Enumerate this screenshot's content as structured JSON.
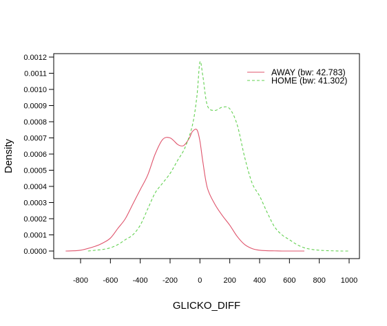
{
  "chart_data": {
    "type": "line",
    "title": "",
    "xlabel": "GLICKO_DIFF",
    "ylabel": "Density",
    "xlim": [
      -900,
      1000
    ],
    "ylim": [
      0,
      0.0012
    ],
    "x_ticks": [
      "-800",
      "-600",
      "-400",
      "-200",
      "0",
      "200",
      "400",
      "600",
      "800",
      "1000"
    ],
    "x_tick_values": [
      -800,
      -600,
      -400,
      -200,
      0,
      200,
      400,
      600,
      800,
      1000
    ],
    "y_ticks": [
      "0.0000",
      "0.0001",
      "0.0002",
      "0.0003",
      "0.0004",
      "0.0005",
      "0.0006",
      "0.0007",
      "0.0008",
      "0.0009",
      "0.0010",
      "0.0011",
      "0.0012"
    ],
    "y_tick_values": [
      0,
      0.0001,
      0.0002,
      0.0003,
      0.0004,
      0.0005,
      0.0006,
      0.0007,
      0.0008,
      0.0009,
      0.001,
      0.0011,
      0.0012
    ],
    "grid": false,
    "legend_position": "top-right",
    "series": [
      {
        "name": "AWAY (bw: 42.783)",
        "color": "#DF536B",
        "dash": "solid",
        "x": [
          -900,
          -800,
          -700,
          -650,
          -600,
          -550,
          -500,
          -450,
          -400,
          -350,
          -300,
          -250,
          -200,
          -150,
          -120,
          -100,
          -70,
          -50,
          -20,
          0,
          20,
          50,
          100,
          150,
          200,
          250,
          300,
          350,
          400,
          450,
          500,
          550,
          600,
          700
        ],
        "y": [
          0.0,
          5e-06,
          3e-05,
          5e-05,
          8e-05,
          0.00014,
          0.0002,
          0.00029,
          0.00038,
          0.00047,
          0.0006,
          0.00069,
          0.0007,
          0.00066,
          0.00065,
          0.00066,
          0.0007,
          0.00074,
          0.00075,
          0.00068,
          0.00055,
          0.00039,
          0.00029,
          0.00022,
          0.00016,
          9e-05,
          4e-05,
          1.5e-05,
          5e-06,
          2e-06,
          1e-06,
          0.0,
          0.0,
          0.0
        ]
      },
      {
        "name": "HOME (bw: 41.302)",
        "color": "#61D04F",
        "dash": "dashed",
        "x": [
          -750,
          -700,
          -650,
          -600,
          -550,
          -500,
          -450,
          -400,
          -350,
          -300,
          -250,
          -200,
          -150,
          -100,
          -50,
          -20,
          0,
          20,
          50,
          100,
          150,
          200,
          250,
          300,
          350,
          400,
          450,
          500,
          550,
          600,
          650,
          700,
          750,
          800,
          850,
          900,
          950,
          1000
        ],
        "y": [
          0.0,
          5e-06,
          1e-05,
          2e-05,
          4e-05,
          7e-05,
          0.0001,
          0.00016,
          0.00026,
          0.00036,
          0.00042,
          0.00048,
          0.00056,
          0.00064,
          0.00078,
          0.00096,
          0.00117,
          0.00108,
          0.0009,
          0.00087,
          0.00089,
          0.00088,
          0.00078,
          0.00058,
          0.00042,
          0.00034,
          0.00024,
          0.00015,
          0.0001,
          7e-05,
          4e-05,
          2e-05,
          1e-05,
          5e-06,
          2.5e-06,
          1e-06,
          0.0,
          0.0
        ]
      }
    ]
  }
}
